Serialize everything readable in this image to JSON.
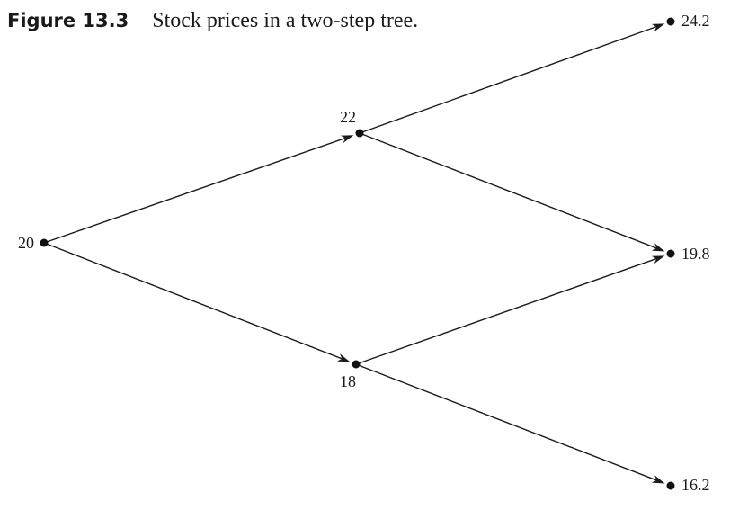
{
  "figure": {
    "number": "Figure 13.3",
    "title": "Stock prices in a two-step tree."
  },
  "tree": {
    "nodes": [
      {
        "id": "n0",
        "label": "20"
      },
      {
        "id": "n1u",
        "label": "22"
      },
      {
        "id": "n1d",
        "label": "18"
      },
      {
        "id": "n2uu",
        "label": "24.2"
      },
      {
        "id": "n2ud",
        "label": "19.8"
      },
      {
        "id": "n2dd",
        "label": "16.2"
      }
    ],
    "edges": [
      {
        "from": "n0",
        "to": "n1u"
      },
      {
        "from": "n0",
        "to": "n1d"
      },
      {
        "from": "n1u",
        "to": "n2uu"
      },
      {
        "from": "n1u",
        "to": "n2ud"
      },
      {
        "from": "n1d",
        "to": "n2ud"
      },
      {
        "from": "n1d",
        "to": "n2dd"
      }
    ],
    "colors": {
      "line": "#1a1a1a",
      "dot": "#111111",
      "text": "#1a1a1a"
    }
  }
}
